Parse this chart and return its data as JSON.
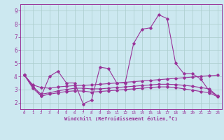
{
  "xlabel": "Windchill (Refroidissement éolien,°C)",
  "xlim": [
    -0.5,
    23.5
  ],
  "ylim": [
    1.5,
    9.5
  ],
  "yticks": [
    2,
    3,
    4,
    5,
    6,
    7,
    8,
    9
  ],
  "xticks": [
    0,
    1,
    2,
    3,
    4,
    5,
    6,
    7,
    8,
    9,
    10,
    11,
    12,
    13,
    14,
    15,
    16,
    17,
    18,
    19,
    20,
    21,
    22,
    23
  ],
  "bg_color": "#cce8f0",
  "line_color": "#993399",
  "grid_color": "#aacccc",
  "series": [
    [
      4.1,
      3.3,
      2.5,
      4.0,
      4.4,
      3.5,
      3.5,
      1.9,
      2.2,
      4.7,
      4.6,
      3.5,
      3.5,
      6.5,
      7.6,
      7.7,
      8.7,
      8.4,
      5.0,
      4.2,
      4.2,
      3.8,
      2.9,
      2.5
    ],
    [
      4.1,
      3.35,
      3.15,
      3.1,
      3.2,
      3.25,
      3.3,
      3.32,
      3.35,
      3.4,
      3.45,
      3.5,
      3.55,
      3.6,
      3.65,
      3.7,
      3.75,
      3.8,
      3.85,
      3.9,
      3.95,
      4.0,
      4.05,
      4.1
    ],
    [
      4.1,
      3.2,
      2.65,
      2.75,
      2.9,
      3.0,
      3.1,
      3.1,
      3.05,
      3.05,
      3.1,
      3.15,
      3.2,
      3.25,
      3.3,
      3.35,
      3.4,
      3.4,
      3.38,
      3.32,
      3.25,
      3.15,
      3.05,
      2.5
    ],
    [
      4.1,
      3.1,
      2.5,
      2.65,
      2.75,
      2.85,
      2.9,
      2.88,
      2.8,
      2.85,
      2.9,
      2.95,
      3.0,
      3.05,
      3.1,
      3.15,
      3.2,
      3.2,
      3.15,
      3.05,
      2.95,
      2.85,
      2.75,
      2.45
    ]
  ]
}
